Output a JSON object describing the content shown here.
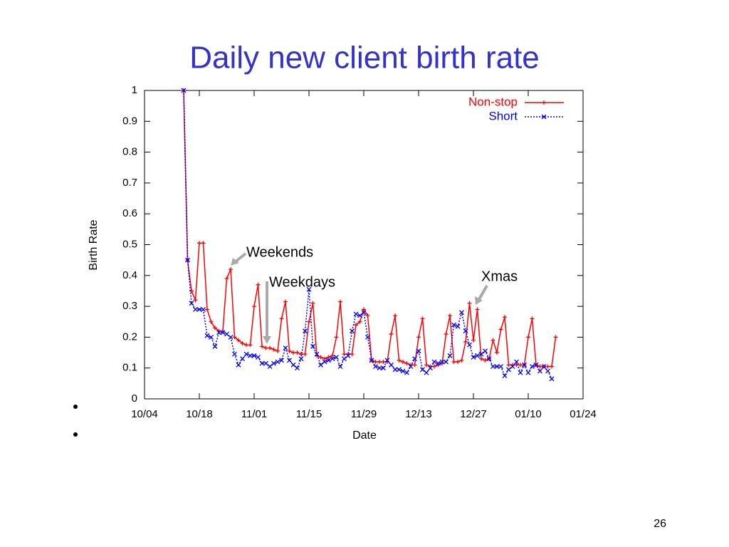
{
  "chart_data": {
    "type": "line",
    "title": "Daily new client birth rate",
    "xlabel": "Date",
    "ylabel": "Birth Rate",
    "x": [
      "10/14",
      "10/15",
      "10/16",
      "10/17",
      "10/18",
      "10/19",
      "10/20",
      "10/21",
      "10/22",
      "10/23",
      "10/24",
      "10/25",
      "10/26",
      "10/27",
      "10/28",
      "10/29",
      "10/30",
      "10/31",
      "11/01",
      "11/02",
      "11/03",
      "11/04",
      "11/05",
      "11/06",
      "11/07",
      "11/08",
      "11/09",
      "11/10",
      "11/11",
      "11/12",
      "11/13",
      "11/14",
      "11/15",
      "11/16",
      "11/17",
      "11/18",
      "11/19",
      "11/20",
      "11/21",
      "11/22",
      "11/23",
      "11/24",
      "11/25",
      "11/26",
      "11/27",
      "11/28",
      "11/29",
      "11/30",
      "12/01",
      "12/02",
      "12/03",
      "12/04",
      "12/05",
      "12/06",
      "12/07",
      "12/08",
      "12/09",
      "12/10",
      "12/11",
      "12/12",
      "12/13",
      "12/14",
      "12/15",
      "12/16",
      "12/17",
      "12/18",
      "12/19",
      "12/20",
      "12/21",
      "12/22",
      "12/23",
      "12/24",
      "12/25",
      "12/26",
      "12/27",
      "12/28",
      "12/29",
      "12/30",
      "12/31",
      "01/01",
      "01/02",
      "01/03",
      "01/04",
      "01/05",
      "01/06",
      "01/07",
      "01/08",
      "01/09",
      "01/10",
      "01/11",
      "01/12",
      "01/13",
      "01/14",
      "01/15",
      "01/16",
      "01/17"
    ],
    "series": [
      {
        "name": "Non-stop",
        "color": "#ff0000",
        "marker": "+",
        "dash": false,
        "values": [
          1.0,
          0.45,
          0.35,
          0.32,
          0.505,
          0.505,
          0.29,
          0.25,
          0.23,
          0.22,
          0.22,
          0.39,
          0.42,
          0.2,
          0.19,
          0.18,
          0.175,
          0.175,
          0.3,
          0.37,
          0.17,
          0.165,
          0.165,
          0.16,
          0.155,
          0.26,
          0.315,
          0.155,
          0.15,
          0.15,
          0.145,
          0.145,
          0.25,
          0.31,
          0.14,
          0.135,
          0.13,
          0.135,
          0.14,
          0.2,
          0.315,
          0.145,
          0.145,
          0.145,
          0.24,
          0.25,
          0.29,
          0.27,
          0.125,
          0.12,
          0.12,
          0.12,
          0.12,
          0.21,
          0.27,
          0.125,
          0.12,
          0.115,
          0.11,
          0.11,
          0.2,
          0.26,
          0.11,
          0.105,
          0.105,
          0.11,
          0.115,
          0.21,
          0.27,
          0.12,
          0.12,
          0.125,
          0.185,
          0.31,
          0.19,
          0.29,
          0.13,
          0.125,
          0.13,
          0.19,
          0.15,
          0.225,
          0.265,
          0.11,
          0.11,
          0.11,
          0.11,
          0.11,
          0.2,
          0.26,
          0.11,
          0.105,
          0.105,
          0.105,
          0.105,
          0.2
        ]
      },
      {
        "name": "Short",
        "color": "#0000ff",
        "marker": "x",
        "dash": true,
        "values": [
          1.0,
          0.45,
          0.31,
          0.29,
          0.29,
          0.29,
          0.205,
          0.2,
          0.17,
          0.215,
          0.215,
          0.21,
          0.2,
          0.145,
          0.11,
          0.13,
          0.145,
          0.14,
          0.14,
          0.135,
          0.115,
          0.115,
          0.105,
          0.115,
          0.12,
          0.125,
          0.165,
          0.125,
          0.11,
          0.1,
          0.13,
          0.22,
          0.355,
          0.17,
          0.145,
          0.11,
          0.12,
          0.125,
          0.13,
          0.135,
          0.105,
          0.13,
          0.14,
          0.22,
          0.275,
          0.27,
          0.28,
          0.2,
          0.125,
          0.105,
          0.1,
          0.1,
          0.125,
          0.11,
          0.095,
          0.095,
          0.09,
          0.085,
          0.105,
          0.13,
          0.155,
          0.095,
          0.085,
          0.1,
          0.12,
          0.115,
          0.12,
          0.12,
          0.14,
          0.24,
          0.235,
          0.28,
          0.22,
          0.175,
          0.135,
          0.14,
          0.145,
          0.155,
          0.13,
          0.105,
          0.105,
          0.105,
          0.075,
          0.095,
          0.105,
          0.12,
          0.085,
          0.11,
          0.085,
          0.105,
          0.11,
          0.09,
          0.105,
          0.09,
          0.065,
          null
        ]
      }
    ],
    "xlim": [
      "10/04",
      "01/24"
    ],
    "xticks": [
      "10/04",
      "10/18",
      "11/01",
      "11/15",
      "11/29",
      "12/13",
      "12/27",
      "01/10",
      "01/24"
    ],
    "ylim": [
      0,
      1
    ],
    "yticks": [
      0,
      0.1,
      0.2,
      0.3,
      0.4,
      0.5,
      0.6,
      0.7,
      0.8,
      0.9,
      1
    ],
    "grid": false,
    "legend": "top-right",
    "annotations": [
      "Weekends",
      "Weekdays",
      "Xmas"
    ],
    "page_number": "26"
  }
}
